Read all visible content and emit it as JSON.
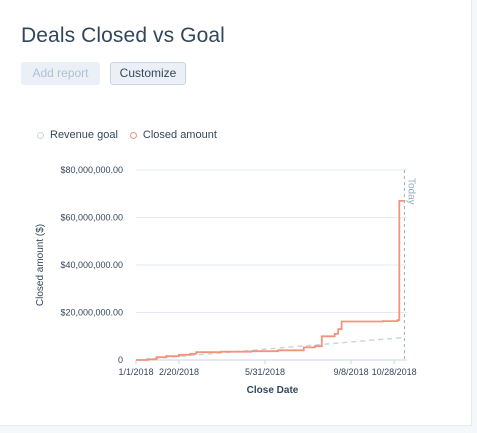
{
  "header": {
    "title": "Deals Closed vs Goal",
    "add_report_label": "Add report",
    "customize_label": "Customize"
  },
  "colors": {
    "revenue_goal": "#cbd6e2",
    "closed_amount": "#f2937d",
    "grid": "#e5ebf0",
    "today_line": "#99afc4"
  },
  "chart_data": {
    "type": "line",
    "title": "Deals Closed vs Goal",
    "xlabel": "Close Date",
    "ylabel": "Closed amount ($)",
    "x_ticks": [
      "1/1/2018",
      "2/20/2018",
      "5/31/2018",
      "9/8/2018",
      "10/28/2018"
    ],
    "y_ticks": [
      "0",
      "$20,000,000.00",
      "$40,000,000.00",
      "$60,000,000.00",
      "$80,000,000.00"
    ],
    "xlim": [
      "2018-01-01",
      "2018-11-12"
    ],
    "ylim": [
      0,
      80000000
    ],
    "grid": true,
    "legend_position": "top-left",
    "legend": [
      "Revenue goal",
      "Closed amount"
    ],
    "annotation": "Today",
    "today_date": "2018-11-09",
    "series": [
      {
        "name": "Revenue goal",
        "style": "dashed",
        "points": [
          [
            "2018-01-01",
            0
          ],
          [
            "2018-11-10",
            9500000
          ]
        ]
      },
      {
        "name": "Closed amount",
        "style": "step",
        "points": [
          [
            "2018-01-01",
            0
          ],
          [
            "2018-01-15",
            300000
          ],
          [
            "2018-01-25",
            1200000
          ],
          [
            "2018-02-05",
            1600000
          ],
          [
            "2018-02-20",
            2200000
          ],
          [
            "2018-03-05",
            2600000
          ],
          [
            "2018-03-12",
            3300000
          ],
          [
            "2018-04-10",
            3500000
          ],
          [
            "2018-05-15",
            3700000
          ],
          [
            "2018-06-15",
            4100000
          ],
          [
            "2018-07-15",
            5300000
          ],
          [
            "2018-07-28",
            5800000
          ],
          [
            "2018-08-05",
            10000000
          ],
          [
            "2018-08-20",
            11000000
          ],
          [
            "2018-08-24",
            13000000
          ],
          [
            "2018-08-28",
            16200000
          ],
          [
            "2018-10-15",
            16400000
          ],
          [
            "2018-11-01",
            16800000
          ],
          [
            "2018-11-03",
            67000000
          ],
          [
            "2018-11-10",
            67000000
          ]
        ]
      }
    ]
  }
}
